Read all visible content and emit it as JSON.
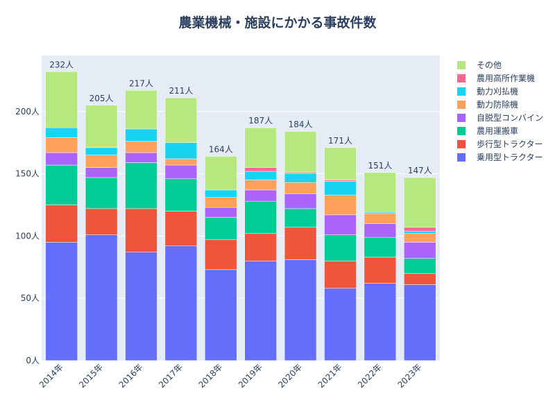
{
  "chart_data": {
    "type": "bar",
    "stacked": true,
    "title": "農業機械・施設にかかる事故件数",
    "xlabel": "",
    "ylabel": "",
    "categories": [
      "2014年",
      "2015年",
      "2016年",
      "2017年",
      "2018年",
      "2019年",
      "2020年",
      "2021年",
      "2022年",
      "2023年"
    ],
    "ylim": [
      0,
      245
    ],
    "yticks": [
      0,
      50,
      100,
      150,
      200
    ],
    "ytick_labels": [
      "0人",
      "50人",
      "100人",
      "150人",
      "200人"
    ],
    "totals": [
      232,
      205,
      217,
      211,
      164,
      187,
      184,
      171,
      151,
      147
    ],
    "total_labels": [
      "232人",
      "205人",
      "217人",
      "211人",
      "164人",
      "187人",
      "184人",
      "171人",
      "151人",
      "147人"
    ],
    "grid": true,
    "legend_position": "right",
    "series": [
      {
        "name": "乗用型トラクター",
        "color": "#636efa",
        "values": [
          95,
          101,
          87,
          92,
          73,
          80,
          81,
          58,
          62,
          61
        ]
      },
      {
        "name": "歩行型トラクター",
        "color": "#ef553b",
        "values": [
          30,
          21,
          35,
          28,
          24,
          22,
          26,
          22,
          21,
          9
        ]
      },
      {
        "name": "農用運搬車",
        "color": "#00cc96",
        "values": [
          32,
          25,
          37,
          26,
          18,
          26,
          15,
          21,
          16,
          12
        ]
      },
      {
        "name": "自脱型コンバイン",
        "color": "#ab63fa",
        "values": [
          10,
          8,
          8,
          11,
          8,
          9,
          12,
          16,
          11,
          13
        ]
      },
      {
        "name": "動力防除機",
        "color": "#ffa15a",
        "values": [
          12,
          10,
          9,
          5,
          8,
          8,
          9,
          16,
          8,
          7
        ]
      },
      {
        "name": "動力刈払機",
        "color": "#19d3f3",
        "values": [
          8,
          6,
          10,
          13,
          6,
          7,
          7,
          11,
          1,
          2
        ]
      },
      {
        "name": "農用高所作業機",
        "color": "#ff6692",
        "values": [
          0,
          0,
          0,
          0,
          0,
          3,
          1,
          1,
          0,
          3
        ]
      },
      {
        "name": "その他",
        "color": "#b6e880",
        "values": [
          45,
          34,
          31,
          36,
          27,
          32,
          33,
          26,
          32,
          40
        ]
      }
    ]
  }
}
